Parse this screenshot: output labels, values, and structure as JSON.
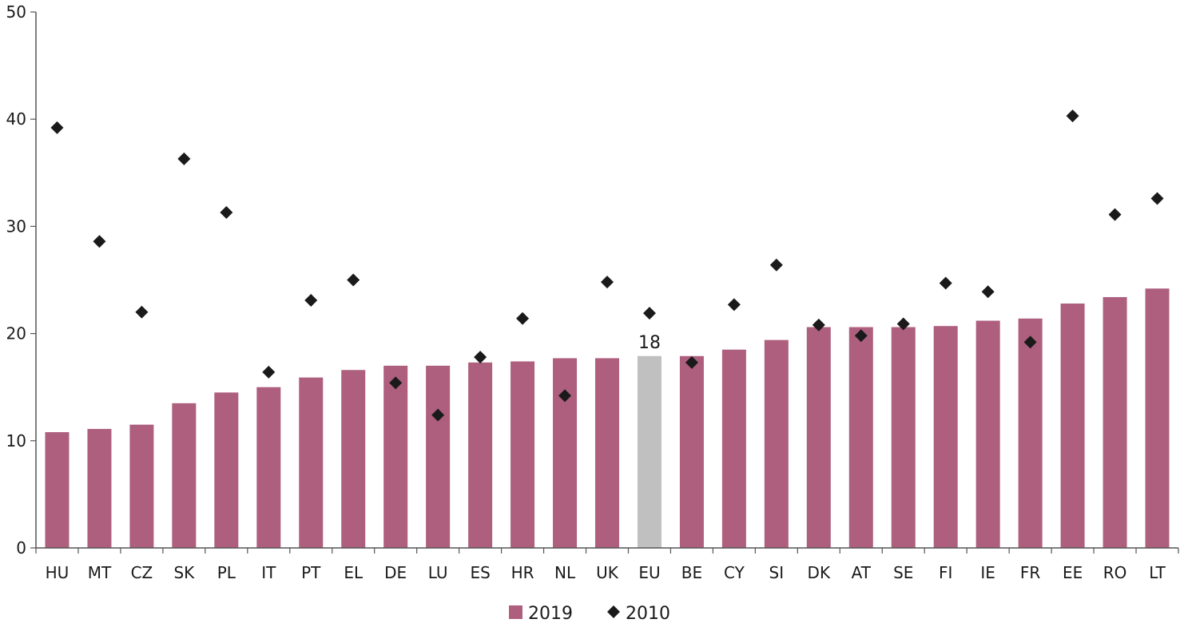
{
  "chart_data": {
    "type": "bar",
    "categories": [
      "HU",
      "MT",
      "CZ",
      "SK",
      "PL",
      "IT",
      "PT",
      "EL",
      "DE",
      "LU",
      "ES",
      "HR",
      "NL",
      "UK",
      "EU",
      "BE",
      "CY",
      "SI",
      "DK",
      "AT",
      "SE",
      "FI",
      "IE",
      "FR",
      "EE",
      "RO",
      "LT"
    ],
    "series": [
      {
        "name": "2019",
        "kind": "bar",
        "color": "#ad5f7d",
        "values": [
          10.8,
          11.1,
          11.5,
          13.5,
          14.5,
          15.0,
          15.9,
          16.6,
          17.0,
          17.0,
          17.3,
          17.4,
          17.7,
          17.7,
          17.9,
          17.9,
          18.5,
          19.4,
          20.6,
          20.6,
          20.6,
          20.7,
          21.2,
          21.4,
          22.8,
          23.4,
          24.2
        ]
      },
      {
        "name": "2010",
        "kind": "marker",
        "marker": "diamond",
        "color": "#1a1a1a",
        "values": [
          39.2,
          28.6,
          22.0,
          36.3,
          31.3,
          16.4,
          23.1,
          25.0,
          15.4,
          12.4,
          17.8,
          21.4,
          14.2,
          24.8,
          21.9,
          17.3,
          22.7,
          26.4,
          20.8,
          19.8,
          20.9,
          24.7,
          23.9,
          19.2,
          40.3,
          31.1,
          32.6
        ]
      }
    ],
    "highlight": {
      "category": "EU",
      "color": "#c0c0c0",
      "label": "18"
    },
    "ylim": [
      0,
      50
    ],
    "yticks": [
      0,
      10,
      20,
      30,
      40,
      50
    ],
    "ytick_labels": [
      "0",
      "10",
      "20",
      "30",
      "40",
      "50"
    ],
    "grid": false,
    "legend": {
      "placement": "bottom-center",
      "items": [
        {
          "label": "2019",
          "symbol": "square",
          "color": "#ad5f7d"
        },
        {
          "label": "2010",
          "symbol": "diamond",
          "color": "#1a1a1a"
        }
      ]
    },
    "axis_color": "#555555"
  }
}
